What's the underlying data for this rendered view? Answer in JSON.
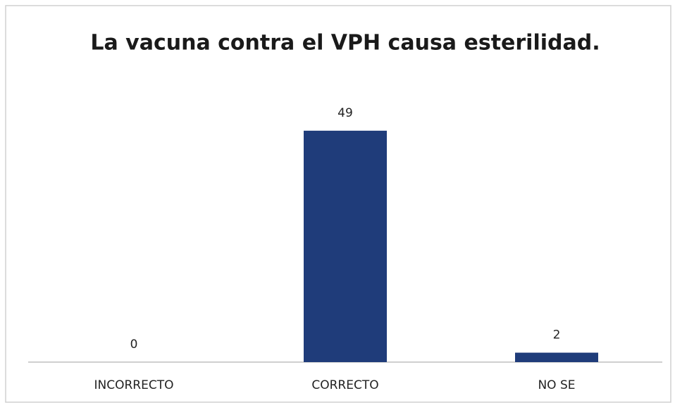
{
  "chart_data": {
    "type": "bar",
    "title": "La vacuna contra el VPH causa esterilidad.",
    "categories": [
      "INCORRECTO",
      "CORRECTO",
      "NO SE"
    ],
    "values": [
      0,
      49,
      2
    ],
    "color": "#1f3c7a",
    "ylim": [
      0,
      60
    ],
    "grid": false
  }
}
